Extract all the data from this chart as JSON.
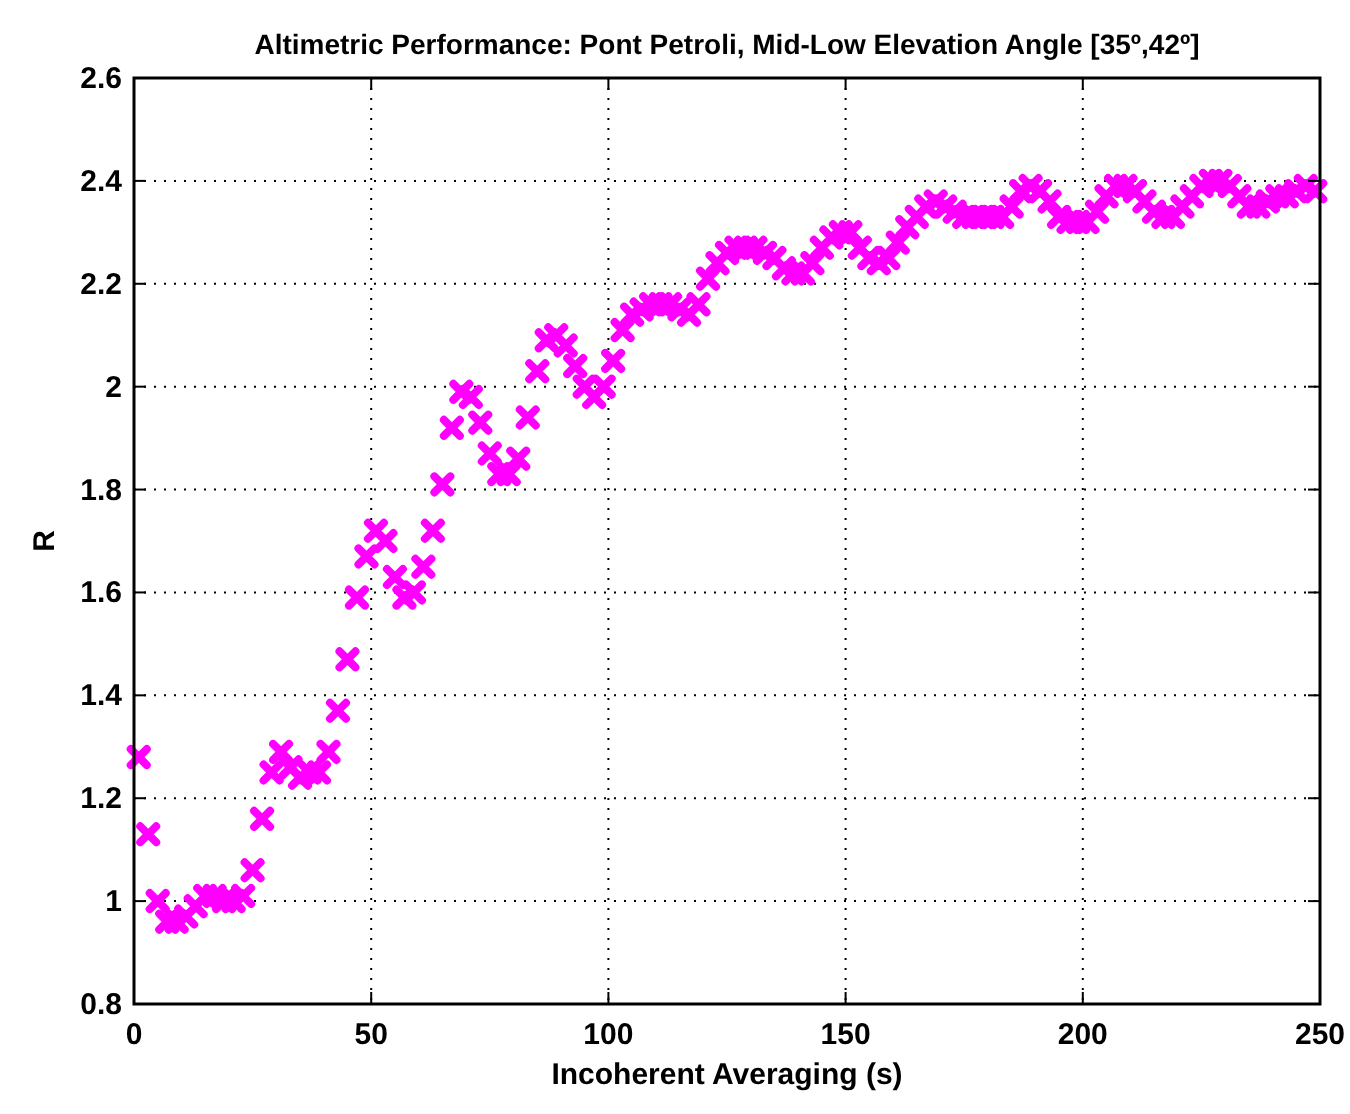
{
  "chart_data": {
    "type": "scatter",
    "title": "Altimetric Performance: Pont Petroli, Mid-Low Elevation Angle [35º,42º]",
    "xlabel": "Incoherent Averaging (s)",
    "ylabel": "R",
    "x": [
      1,
      3,
      5,
      7,
      9,
      11,
      13,
      15,
      17,
      19,
      21,
      23,
      25,
      27,
      29,
      31,
      33,
      35,
      37,
      39,
      41,
      43,
      45,
      47,
      49,
      51,
      53,
      55,
      57,
      59,
      61,
      63,
      65,
      67,
      69,
      71,
      73,
      75,
      77,
      79,
      81,
      83,
      85,
      87,
      89,
      91,
      93,
      95,
      97,
      99,
      101,
      103,
      105,
      107,
      109,
      111,
      113,
      115,
      117,
      119,
      121,
      123,
      125,
      127,
      129,
      131,
      133,
      135,
      137,
      139,
      141,
      143,
      145,
      147,
      149,
      151,
      153,
      155,
      157,
      159,
      161,
      163,
      165,
      167,
      169,
      171,
      173,
      175,
      177,
      179,
      181,
      183,
      185,
      187,
      189,
      191,
      193,
      195,
      197,
      199,
      201,
      203,
      205,
      207,
      209,
      211,
      213,
      215,
      217,
      219,
      221,
      223,
      225,
      227,
      229,
      231,
      233,
      235,
      237,
      239,
      241,
      243,
      245,
      247,
      249
    ],
    "series": [
      {
        "color": "#ff00ff",
        "values": [
          1.28,
          1.13,
          1.0,
          0.96,
          0.96,
          0.97,
          0.99,
          1.01,
          1.01,
          1.0,
          1.0,
          1.01,
          1.06,
          1.16,
          1.25,
          1.29,
          1.26,
          1.24,
          1.25,
          1.25,
          1.29,
          1.37,
          1.47,
          1.59,
          1.67,
          1.72,
          1.7,
          1.63,
          1.59,
          1.6,
          1.65,
          1.72,
          1.81,
          1.92,
          1.99,
          1.98,
          1.93,
          1.87,
          1.83,
          1.83,
          1.86,
          1.94,
          2.03,
          2.09,
          2.1,
          2.08,
          2.04,
          2.0,
          1.98,
          2.0,
          2.05,
          2.11,
          2.14,
          2.15,
          2.16,
          2.16,
          2.16,
          2.15,
          2.14,
          2.16,
          2.21,
          2.24,
          2.26,
          2.27,
          2.27,
          2.27,
          2.26,
          2.25,
          2.23,
          2.22,
          2.22,
          2.24,
          2.27,
          2.29,
          2.3,
          2.3,
          2.27,
          2.25,
          2.24,
          2.25,
          2.28,
          2.31,
          2.33,
          2.35,
          2.36,
          2.35,
          2.34,
          2.33,
          2.33,
          2.33,
          2.33,
          2.33,
          2.35,
          2.38,
          2.39,
          2.38,
          2.36,
          2.33,
          2.32,
          2.32,
          2.32,
          2.34,
          2.37,
          2.39,
          2.39,
          2.38,
          2.36,
          2.34,
          2.33,
          2.33,
          2.35,
          2.37,
          2.39,
          2.4,
          2.4,
          2.39,
          2.37,
          2.35,
          2.35,
          2.36,
          2.37,
          2.37,
          2.38,
          2.39,
          2.38
        ]
      }
    ],
    "xlim": [
      0,
      250
    ],
    "xticks": [
      0,
      50,
      100,
      150,
      200,
      250
    ],
    "ylim": [
      0.8,
      2.6
    ],
    "yticks": [
      0.8,
      1,
      1.2,
      1.4,
      1.6,
      1.8,
      2,
      2.2,
      2.4,
      2.6
    ],
    "grid": true,
    "marker": "cross"
  }
}
